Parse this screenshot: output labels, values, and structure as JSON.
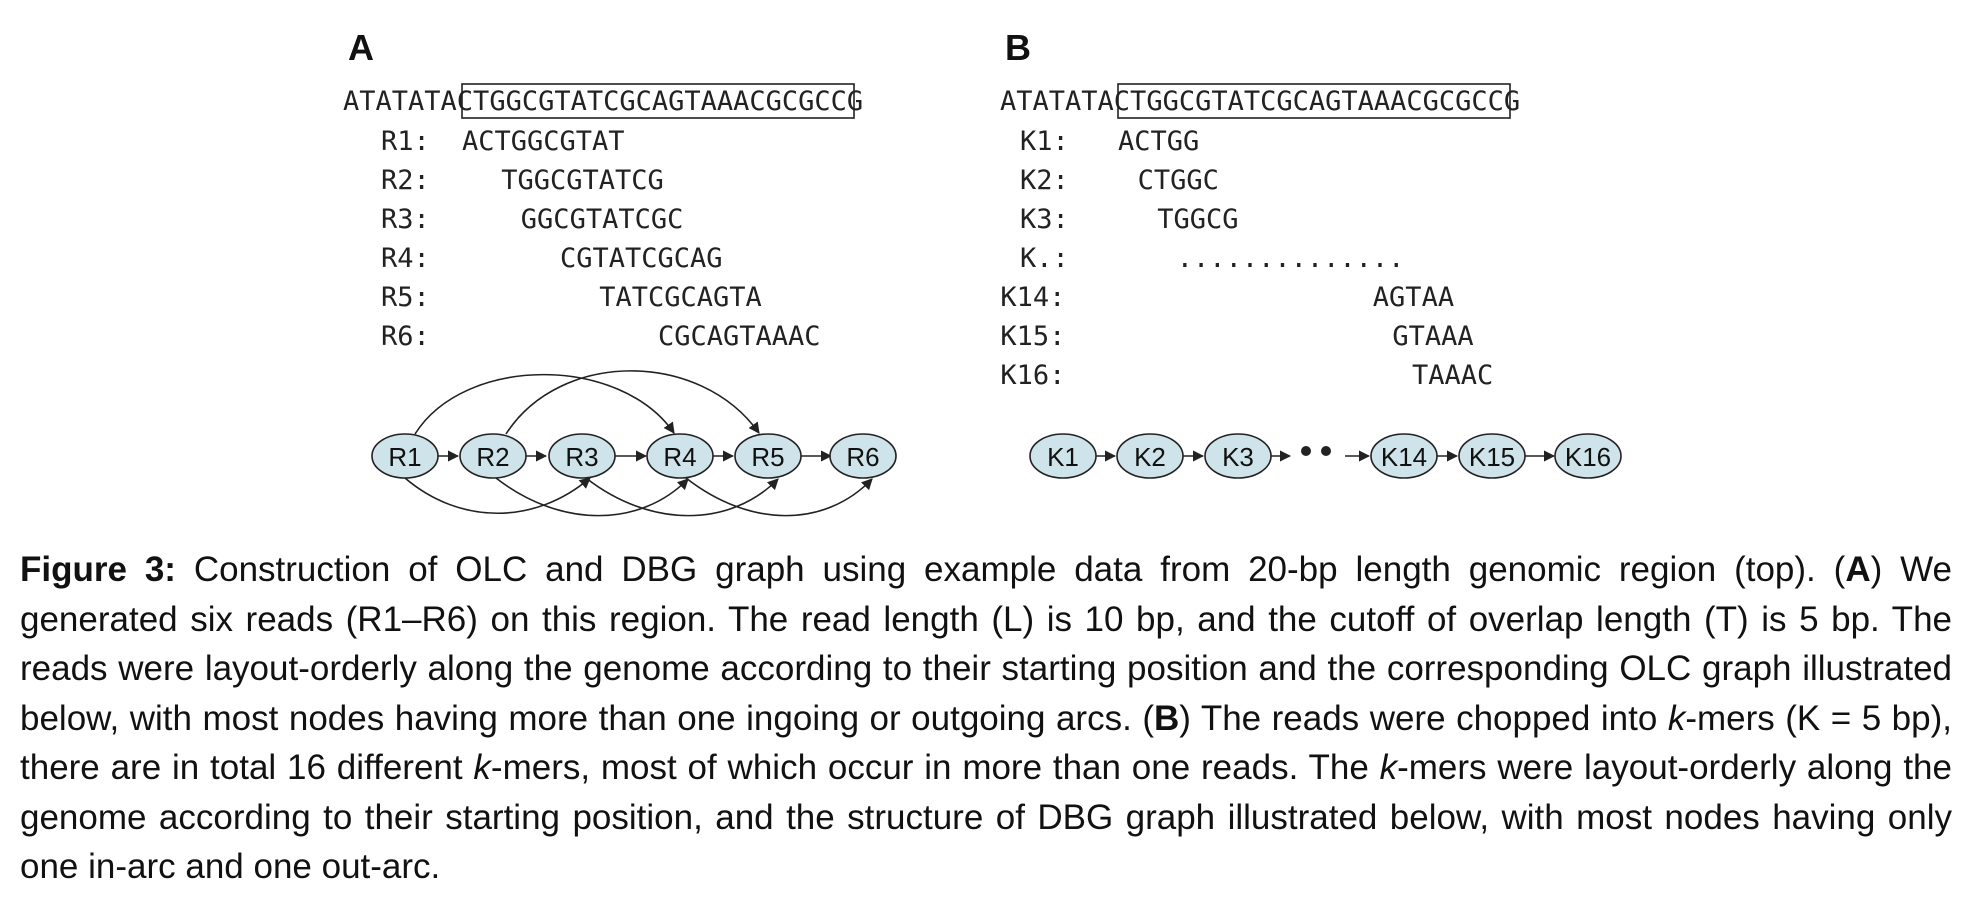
{
  "panel_a": {
    "label": "A",
    "genome": {
      "prefix": "ATATAT",
      "boxed": "ACTGGCGTATCGCAGTAAAC",
      "suffix": "GCGCCG"
    },
    "reads": [
      {
        "name": "R1:",
        "offset": 0,
        "seq": "ACTGGCGTAT"
      },
      {
        "name": "R2:",
        "offset": 2,
        "seq": "TGGCGTATCG"
      },
      {
        "name": "R3:",
        "offset": 3,
        "seq": "GGCGTATCGC"
      },
      {
        "name": "R4:",
        "offset": 5,
        "seq": "CGTATCGCAG"
      },
      {
        "name": "R5:",
        "offset": 7,
        "seq": "TATCGCAGTA"
      },
      {
        "name": "R6:",
        "offset": 10,
        "seq": "CGCAGTAAAC"
      }
    ],
    "graph_nodes": [
      "R1",
      "R2",
      "R3",
      "R4",
      "R5",
      "R6"
    ]
  },
  "panel_b": {
    "label": "B",
    "genome": {
      "prefix": "ATATAT",
      "boxed": "ACTGGCGTATCGCAGTAAAC",
      "suffix": "GCGCCG"
    },
    "kmers": [
      {
        "name": "K1:",
        "offset": 0,
        "seq": "ACTGG"
      },
      {
        "name": "K2:",
        "offset": 1,
        "seq": "CTGGC"
      },
      {
        "name": "K3:",
        "offset": 2,
        "seq": "TGGCG"
      },
      {
        "name": "K.:",
        "offset": 3,
        "seq": ".............."
      },
      {
        "name": "K14:",
        "offset": 13,
        "seq": "AGTAA"
      },
      {
        "name": "K15:",
        "offset": 14,
        "seq": "GTAAA"
      },
      {
        "name": "K16:",
        "offset": 15,
        "seq": "TAAAC"
      }
    ],
    "graph_nodes": [
      "K1",
      "K2",
      "K3",
      "K14",
      "K15",
      "K16"
    ]
  },
  "caption": {
    "label": "Figure 3:",
    "intro": " Construction of OLC and DBG graph using example data from 20-bp length genomic region (top).",
    "a_open": "(",
    "a_label": "A",
    "a_text": ") We generated six reads (R1–R6) on this region. The read length (L) is 10 bp, and the cutoff of overlap length (T) is 5 bp. The reads were layout-orderly along the genome according to their starting position and the corresponding OLC graph illustrated below, with most nodes having more than one ingoing or outgoing arcs.",
    "b_open": " (",
    "b_label": "B",
    "b_text1": ") The reads were chopped into ",
    "k1": "k",
    "b_text2": "-mers (K = 5 bp), there are in total 16 different ",
    "k2": "k",
    "b_text3": "-mers, most of which occur in more than one reads. The ",
    "k3": "k",
    "b_text4": "-mers were layout-orderly along the genome according to their starting position, and the structure of DBG graph illustrated below, with most nodes having only one in-arc and one out-arc."
  }
}
